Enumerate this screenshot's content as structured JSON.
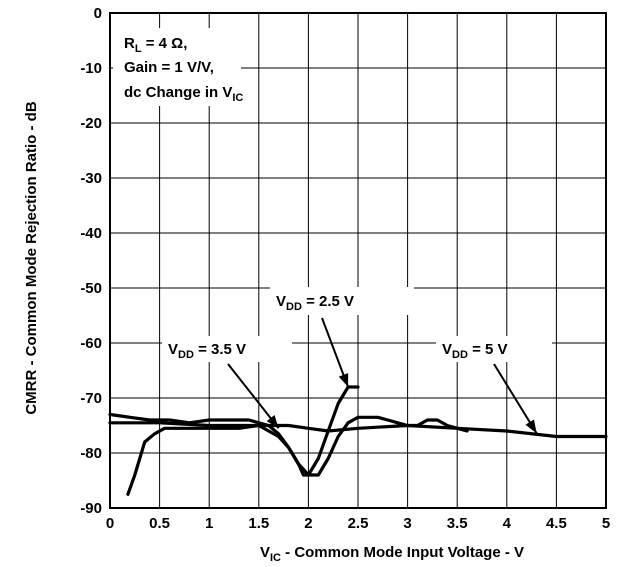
{
  "chart_data": {
    "type": "line",
    "title": "",
    "xlabel": {
      "main": "V",
      "sub": "IC",
      "rest": " - Common Mode Input Voltage - V"
    },
    "ylabel": "CMRR - Common Mode Rejection Ratio - dB",
    "xlim": [
      0,
      5
    ],
    "ylim": [
      -90,
      0
    ],
    "xticks": [
      0,
      0.5,
      1,
      1.5,
      2,
      2.5,
      3,
      3.5,
      4,
      4.5,
      5
    ],
    "xtick_labels": [
      "0",
      "0.5",
      "1",
      "1.5",
      "2",
      "2.5",
      "3",
      "3.5",
      "4",
      "4.5",
      "5"
    ],
    "yticks": [
      0,
      -10,
      -20,
      -30,
      -40,
      -50,
      -60,
      -70,
      -80,
      -90
    ],
    "ytick_labels": [
      "0",
      "-10",
      "-20",
      "-30",
      "-40",
      "-50",
      "-60",
      "-70",
      "-80",
      "-90"
    ],
    "grid": true,
    "note": {
      "line1": {
        "main": "R",
        "sub": "L",
        "rest": " = 4 Ω,"
      },
      "line2": "Gain = 1 V/V,",
      "line3": {
        "main": "dc Change in V",
        "sub": "IC",
        "rest": ""
      }
    },
    "series": [
      {
        "label": {
          "main": "V",
          "sub": "DD",
          "rest": " = 2.5 V"
        },
        "x": [
          0.18,
          0.25,
          0.35,
          0.45,
          0.55,
          0.7,
          0.9,
          1.1,
          1.3,
          1.5,
          1.6,
          1.7,
          1.8,
          1.9,
          1.95,
          2.0,
          2.1,
          2.2,
          2.3,
          2.4,
          2.5
        ],
        "y": [
          -87.5,
          -84,
          -78,
          -76.5,
          -75.5,
          -75.5,
          -75.5,
          -75.5,
          -75.5,
          -75,
          -76,
          -77,
          -79,
          -82,
          -84,
          -84,
          -81,
          -76,
          -71,
          -68,
          -68
        ]
      },
      {
        "label": {
          "main": "V",
          "sub": "DD",
          "rest": " = 3.5 V"
        },
        "x": [
          0,
          0.2,
          0.4,
          0.6,
          0.8,
          1.0,
          1.2,
          1.4,
          1.5,
          1.6,
          1.7,
          1.8,
          1.9,
          2.0,
          2.1,
          2.2,
          2.3,
          2.4,
          2.5,
          2.6,
          2.7,
          2.8,
          2.9,
          3.0,
          3.1,
          3.2,
          3.3,
          3.4,
          3.5,
          3.6
        ],
        "y": [
          -73,
          -73.5,
          -74,
          -74,
          -74.5,
          -74,
          -74,
          -74,
          -74.5,
          -75,
          -76.5,
          -79,
          -82,
          -84,
          -84,
          -81,
          -77,
          -74.5,
          -73.5,
          -73.5,
          -73.5,
          -74,
          -74.5,
          -75,
          -75,
          -74,
          -74,
          -75,
          -75.5,
          -76
        ]
      },
      {
        "label": {
          "main": "V",
          "sub": "DD",
          "rest": " = 5 V"
        },
        "x": [
          0,
          0.5,
          1,
          1.5,
          1.8,
          2.0,
          2.2,
          2.5,
          3,
          3.5,
          4,
          4.5,
          5
        ],
        "y": [
          -74.5,
          -74.5,
          -75,
          -75,
          -75,
          -75.5,
          -76,
          -75.5,
          -75,
          -75.5,
          -76,
          -77,
          -77
        ]
      }
    ]
  }
}
